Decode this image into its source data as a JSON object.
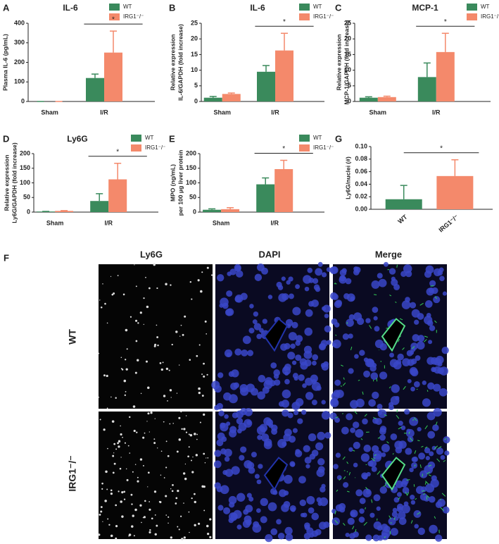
{
  "chart_data": [
    {
      "panel": "A",
      "type": "bar",
      "title": "IL-6",
      "ylabel": [
        "Plasma IL-6 (pg/mL)"
      ],
      "categories": [
        "Sham",
        "I/R"
      ],
      "series": [
        {
          "name": "WT",
          "color": "#3a8a5c",
          "values": [
            0,
            120
          ],
          "errors": [
            0,
            20
          ]
        },
        {
          "name": "IRG1⁻/⁻",
          "color": "#f4896b",
          "values": [
            0,
            250
          ],
          "errors": [
            0,
            110
          ]
        }
      ],
      "ylim": [
        0,
        400
      ],
      "yticks": [
        0,
        100,
        200,
        300,
        400
      ],
      "significance": "*"
    },
    {
      "panel": "B",
      "type": "bar",
      "title": "IL-6",
      "ylabel": [
        "Relative expression",
        "IL-6/GAPDH (fold increase)"
      ],
      "categories": [
        "Sham",
        "I/R"
      ],
      "series": [
        {
          "name": "WT",
          "color": "#3a8a5c",
          "values": [
            1.2,
            9.5
          ],
          "errors": [
            0.4,
            2
          ]
        },
        {
          "name": "IRG1⁻/⁻",
          "color": "#f4896b",
          "values": [
            2.4,
            16.3
          ],
          "errors": [
            0.3,
            5.5
          ]
        }
      ],
      "ylim": [
        0,
        25
      ],
      "yticks": [
        0,
        5,
        10,
        15,
        20,
        25
      ],
      "significance": "*"
    },
    {
      "panel": "C",
      "type": "bar",
      "title": "MCP-1",
      "ylabel": [
        "Relative expression",
        "MCP-1/GAPDH (fold increase)"
      ],
      "categories": [
        "Sham",
        "I/R"
      ],
      "series": [
        {
          "name": "WT",
          "color": "#3a8a5c",
          "values": [
            1.2,
            7.8
          ],
          "errors": [
            0.3,
            4.5
          ]
        },
        {
          "name": "IRG1⁻/⁻",
          "color": "#f4896b",
          "values": [
            1.4,
            15.8
          ],
          "errors": [
            0.3,
            6
          ]
        }
      ],
      "ylim": [
        0,
        25
      ],
      "yticks": [
        0,
        5,
        10,
        15,
        20,
        25
      ],
      "significance": "*"
    },
    {
      "panel": "D",
      "type": "bar",
      "title": "Ly6G",
      "ylabel": [
        "Relative expression",
        "Ly6G/GAPDH (fold increase)"
      ],
      "categories": [
        "Sham",
        "I/R"
      ],
      "series": [
        {
          "name": "WT",
          "color": "#3a8a5c",
          "values": [
            2,
            38
          ],
          "errors": [
            0.5,
            25
          ]
        },
        {
          "name": "IRG1⁻/⁻",
          "color": "#f4896b",
          "values": [
            4,
            112
          ],
          "errors": [
            1,
            55
          ]
        }
      ],
      "ylim": [
        0,
        200
      ],
      "yticks": [
        0,
        50,
        100,
        150,
        200
      ],
      "significance": "*"
    },
    {
      "panel": "E",
      "type": "bar",
      "ylabel": [
        "MPO (ng/mL)",
        "per 100 μg liver protein"
      ],
      "categories": [
        "Sham",
        "I/R"
      ],
      "series": [
        {
          "name": "WT",
          "color": "#3a8a5c",
          "values": [
            8,
            95
          ],
          "errors": [
            3,
            22
          ]
        },
        {
          "name": "IRG1⁻/⁻",
          "color": "#f4896b",
          "values": [
            10,
            147
          ],
          "errors": [
            5,
            30
          ]
        }
      ],
      "ylim": [
        0,
        200
      ],
      "yticks": [
        0,
        50,
        100,
        150,
        200
      ],
      "significance": "*"
    },
    {
      "panel": "G",
      "type": "simplebar",
      "ylabel": [
        "Ly6G/nuclei (#)"
      ],
      "categories": [
        "WT",
        "IRG1⁻/⁻"
      ],
      "values": [
        0.016,
        0.053
      ],
      "errors": [
        0.022,
        0.026
      ],
      "colors": [
        "#3a8a5c",
        "#f4896b"
      ],
      "ylim": [
        0,
        0.1
      ],
      "yticks": [
        {
          "value": 0,
          "label": "0.00"
        },
        {
          "value": 0.02,
          "label": "0.02"
        },
        {
          "value": 0.04,
          "label": "0.04"
        },
        {
          "value": 0.06,
          "label": "0.06"
        },
        {
          "value": 0.08,
          "label": "0.08"
        },
        {
          "value": 0.1,
          "label": "0.10"
        }
      ],
      "significance": "*"
    }
  ],
  "figure_panel": {
    "panel": "F",
    "columns": [
      "Ly6G",
      "DAPI",
      "Merge"
    ],
    "rows": [
      "WT",
      "IRG1⁻/⁻"
    ]
  }
}
